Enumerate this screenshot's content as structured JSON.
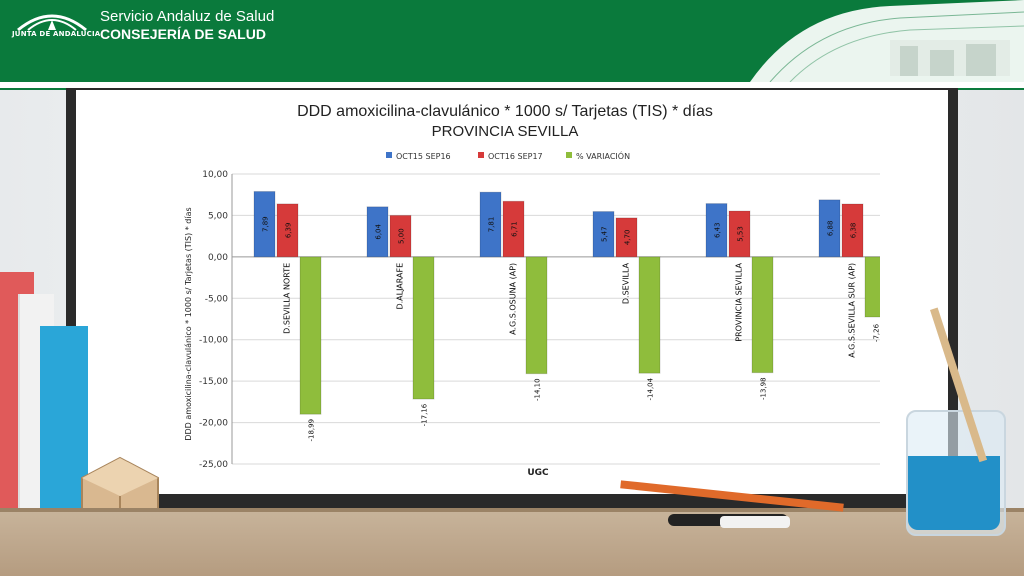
{
  "header": {
    "org_small": "JUNTA DE ANDALUCIA",
    "org_name": "Servicio Andaluz de Salud",
    "department": "CONSEJERÍA DE SALUD"
  },
  "chart_data": {
    "type": "bar",
    "title": "DDD amoxicilina-clavulánico * 1000 s/ Tarjetas (TIS) * días",
    "subtitle": "PROVINCIA SEVILLA",
    "xlabel": "UGC",
    "ylabel": "DDD amoxicilina-clavulánico * 1000 s/ Tarjetas (TIS) * días",
    "ylim": [
      -25,
      10
    ],
    "yticks": [
      "10,00",
      "5,00",
      "0,00",
      "-5,00",
      "-10,00",
      "-15,00",
      "-20,00",
      "-25,00"
    ],
    "ytick_values": [
      10,
      5,
      0,
      -5,
      -10,
      -15,
      -20,
      -25
    ],
    "grid": true,
    "legend_position": "top",
    "categories": [
      "D.SEVILLA NORTE",
      "D.ALJARAFE",
      "A.G.S.OSUNA (AP)",
      "D.SEVILLA",
      "PROVINCIA SEVILLA",
      "A.G.S.SEVILLA SUR (AP)"
    ],
    "series": [
      {
        "name": "OCT15 SEP16",
        "color": "#3e74c8",
        "values": [
          7.89,
          6.04,
          7.81,
          5.47,
          6.43,
          6.88
        ],
        "labels": [
          "7,89",
          "6,04",
          "7,81",
          "5,47",
          "6,43",
          "6,88"
        ]
      },
      {
        "name": "OCT16 SEP17",
        "color": "#d63a3a",
        "values": [
          6.39,
          5.0,
          6.71,
          4.7,
          5.53,
          6.38
        ],
        "labels": [
          "6,39",
          "5,00",
          "6,71",
          "4,70",
          "5,53",
          "6,38"
        ]
      },
      {
        "name": "% VARIACIÓN",
        "color": "#8fbd3c",
        "values": [
          -18.99,
          -17.16,
          -14.1,
          -14.04,
          -13.98,
          -7.26
        ],
        "labels": [
          "-18,99",
          "-17,16",
          "-14,10",
          "-14,04",
          "-13,98",
          "-7,26"
        ]
      }
    ]
  }
}
